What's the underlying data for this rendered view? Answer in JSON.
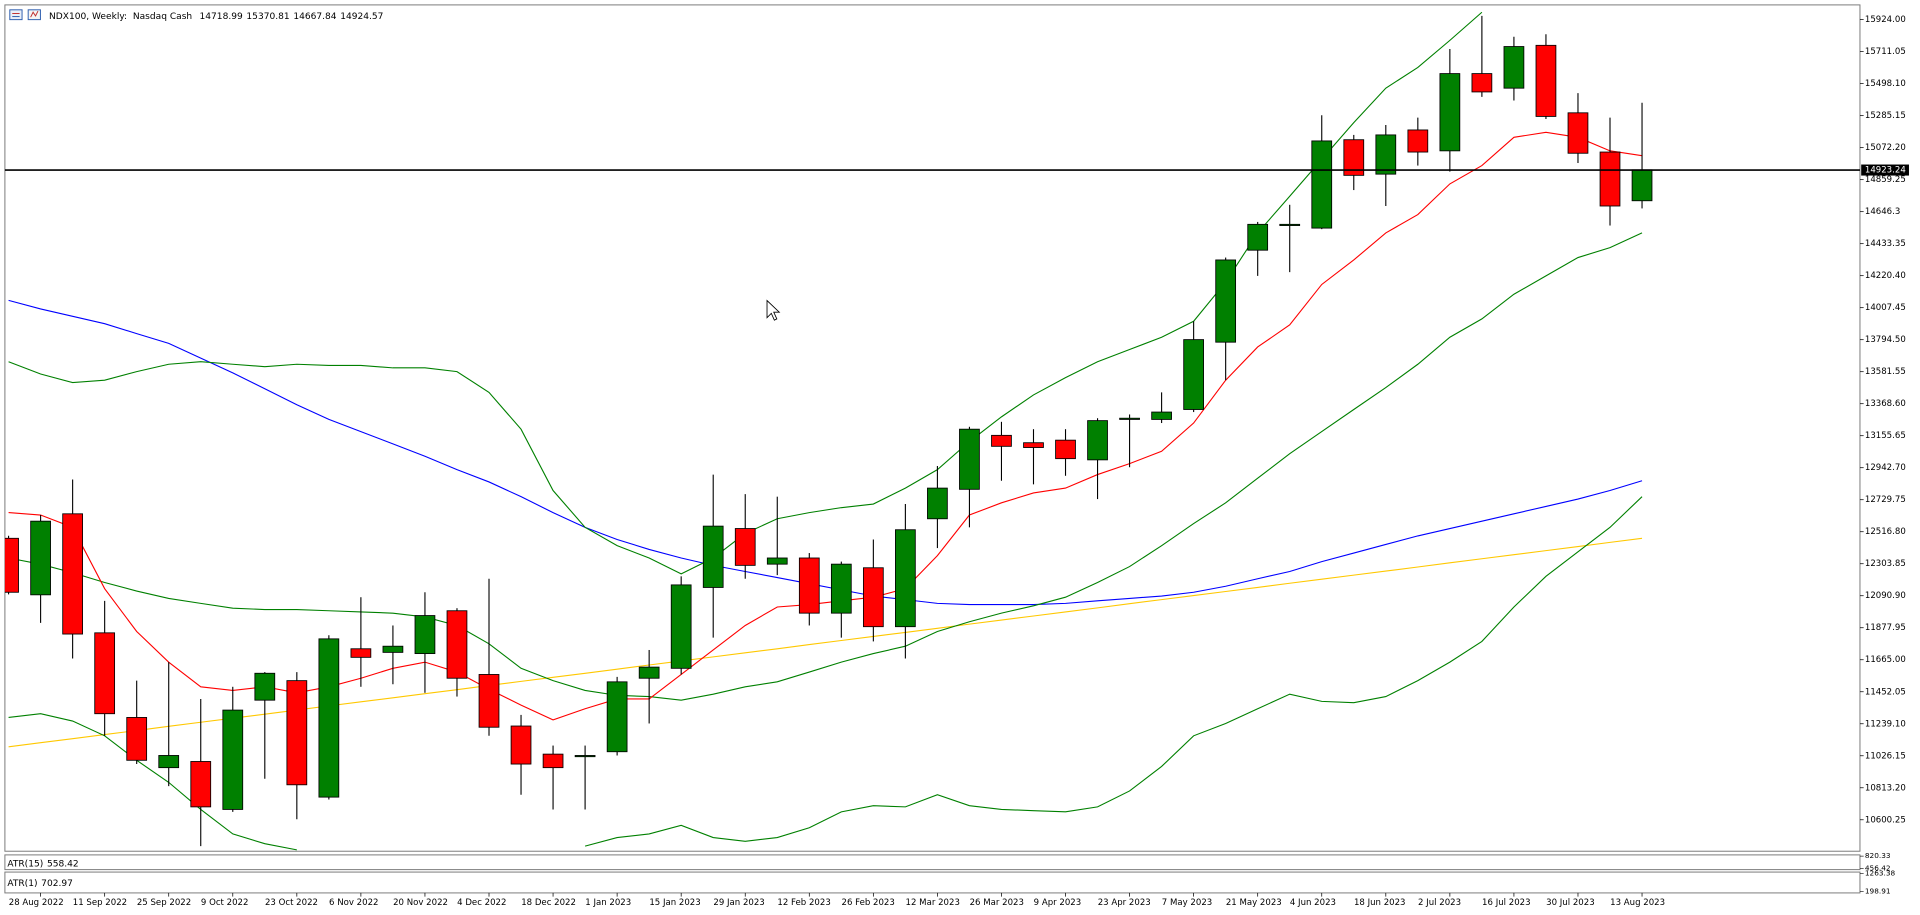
{
  "chart_data": {
    "type": "candlestick",
    "title": "NDX100, Weekly:  Nasdaq Cash",
    "categories": [
      null,
      "28 Aug 2022",
      null,
      "11 Sep 2022",
      null,
      "25 Sep 2022",
      null,
      "9 Oct 2022",
      null,
      "23 Oct 2022",
      null,
      "6 Nov 2022",
      null,
      "20 Nov 2022",
      null,
      "4 Dec 2022",
      null,
      "18 Dec 2022",
      null,
      "1 Jan 2023",
      null,
      "15 Jan 2023",
      null,
      "29 Jan 2023",
      null,
      "12 Feb 2023",
      null,
      "26 Feb 2023",
      null,
      "12 Mar 2023",
      null,
      "26 Mar 2023",
      null,
      "9 Apr 2023",
      null,
      "23 Apr 2023",
      null,
      "7 May 2023",
      null,
      "21 May 2023",
      null,
      "4 Jun 2023",
      null,
      "18 Jun 2023",
      null,
      "2 Jul 2023",
      null,
      "16 Jul 2023",
      null,
      "30 Jul 2023",
      null,
      "13 Aug 2023"
    ],
    "open": [
      12473,
      12097,
      12636,
      11844,
      11281,
      10947,
      10988,
      10669,
      11396,
      11526,
      10751,
      11738,
      11714,
      11706,
      11991,
      11567,
      11224,
      11037,
      11020,
      11053,
      11542,
      11608,
      12146,
      12538,
      12301,
      12342,
      11975,
      12277,
      11885,
      12603,
      12799,
      13158,
      13109,
      13126,
      12995,
      13264,
      13264,
      13330,
      13778,
      14390,
      14554,
      14537,
      15125,
      14896,
      15190,
      15051,
      15565,
      15468,
      15753,
      15304,
      15043,
      14718.99
    ],
    "high": [
      12490,
      12628,
      12864,
      12057,
      11526,
      11649,
      11404,
      11485,
      11583,
      11583,
      11828,
      12081,
      11893,
      12114,
      12008,
      12204,
      11298,
      11094,
      11094,
      11551,
      11730,
      12220,
      12897,
      12767,
      12750,
      12375,
      12318,
      12465,
      12701,
      12954,
      13215,
      13248,
      13199,
      13199,
      13272,
      13297,
      13444,
      13917,
      14341,
      14578,
      14692,
      15288,
      15157,
      15223,
      15272,
      15729,
      15949,
      15810,
      15827,
      15435,
      15272,
      15370.81
    ],
    "low": [
      12100,
      11910,
      11673,
      11159,
      10971,
      10824,
      10425,
      10653,
      10873,
      10604,
      10735,
      11485,
      11502,
      11445,
      11420,
      11159,
      10767,
      10669,
      10669,
      11028,
      11241,
      11567,
      11812,
      12204,
      12228,
      11893,
      11812,
      11787,
      11673,
      12408,
      12546,
      12856,
      12832,
      12889,
      12734,
      12946,
      13240,
      13313,
      13525,
      14219,
      14244,
      14530,
      14790,
      14684,
      14953,
      14913,
      15410,
      15386,
      15263,
      14970,
      14554,
      14667.84
    ],
    "close": [
      12114,
      12587,
      11836,
      11306,
      10996,
      11028,
      10686,
      11330,
      11575,
      10833,
      11804,
      11681,
      11755,
      11959,
      11542,
      11216,
      10971,
      10947,
      11028,
      11518,
      11616,
      12163,
      12554,
      12293,
      12342,
      11975,
      12301,
      11885,
      12530,
      12807,
      13199,
      13085,
      13077,
      13003,
      13256,
      13272,
      13313,
      13795,
      14325,
      14562,
      14562,
      15117,
      14888,
      15157,
      15043,
      15565,
      15443,
      15745,
      15280,
      15035,
      14684,
      14924.57
    ],
    "up_color": "#008000",
    "down_color": "#ff0000",
    "overlays": [
      {
        "color": "#0000ff",
        "values": [
          14056,
          13999,
          13950,
          13901,
          13835,
          13770,
          13672,
          13574,
          13468,
          13362,
          13264,
          13183,
          13101,
          13019,
          12930,
          12848,
          12750,
          12644,
          12546,
          12465,
          12399,
          12342,
          12293,
          12252,
          12212,
          12171,
          12130,
          12089,
          12065,
          12040,
          12032,
          12032,
          12032,
          12040,
          12057,
          12073,
          12089,
          12114,
          12154,
          12204,
          12252,
          12318,
          12375,
          12432,
          12489,
          12538,
          12587,
          12636,
          12685,
          12734,
          12791,
          12856
        ]
      },
      {
        "color": "#ffc800",
        "values": [
          11086,
          11113,
          11140,
          11167,
          11194,
          11222,
          11249,
          11276,
          11303,
          11330,
          11358,
          11385,
          11412,
          11439,
          11466,
          11494,
          11521,
          11548,
          11575,
          11602,
          11630,
          11657,
          11684,
          11711,
          11738,
          11766,
          11793,
          11820,
          11847,
          11874,
          11902,
          11929,
          11956,
          11983,
          12010,
          12038,
          12065,
          12092,
          12119,
          12146,
          12174,
          12201,
          12228,
          12255,
          12282,
          12310,
          12337,
          12364,
          12391,
          12418,
          12446,
          12473
        ]
      },
      {
        "color": "#008000",
        "values": [
          13648,
          13566,
          13509,
          13525,
          13582,
          13631,
          13648,
          13631,
          13615,
          13631,
          13623,
          13623,
          13607,
          13607,
          13582,
          13444,
          13199,
          12791,
          12546,
          12424,
          12342,
          12236,
          12342,
          12505,
          12603,
          12644,
          12677,
          12701,
          12807,
          12930,
          13117,
          13281,
          13427,
          13542,
          13648,
          13729,
          13811,
          13917,
          14178,
          14505,
          14749,
          14994,
          15239,
          15468,
          15606,
          15786,
          15973,
          null,
          null,
          null,
          null,
          null
        ]
      },
      {
        "color": "#008000",
        "values": [
          12342,
          12301,
          12244,
          12179,
          12122,
          12073,
          12040,
          12008,
          11999,
          11999,
          11991,
          11983,
          11975,
          11950,
          11893,
          11771,
          11608,
          11526,
          11461,
          11428,
          11420,
          11396,
          11436,
          11485,
          11518,
          11583,
          11649,
          11706,
          11755,
          11853,
          11918,
          11975,
          12024,
          12081,
          12179,
          12285,
          12424,
          12571,
          12709,
          12873,
          13036,
          13183,
          13330,
          13476,
          13631,
          13811,
          13933,
          14097,
          14219,
          14341,
          14407,
          14505
        ]
      },
      {
        "color": "#008000",
        "values": [
          11281,
          11306,
          11257,
          11159,
          10996,
          10849,
          10669,
          10506,
          10441,
          10400,
          null,
          null,
          null,
          null,
          null,
          null,
          null,
          null,
          10425,
          10482,
          10506,
          10563,
          10482,
          10457,
          10482,
          10547,
          10653,
          10694,
          10686,
          10767,
          10694,
          10669,
          10661,
          10653,
          10686,
          10792,
          10955,
          11159,
          11241,
          11339,
          11436,
          11388,
          11379,
          11420,
          11526,
          11649,
          11787,
          12016,
          12220,
          12383,
          12546,
          12750
        ]
      },
      {
        "color": "#ff0000",
        "values": [
          12644,
          12628,
          12546,
          12138,
          11853,
          11649,
          11485,
          11461,
          11485,
          11445,
          11485,
          11542,
          11608,
          11649,
          11583,
          11469,
          11363,
          11265,
          11339,
          11404,
          11404,
          11567,
          11730,
          11893,
          12016,
          12032,
          12057,
          12081,
          12138,
          12358,
          12628,
          12709,
          12775,
          12807,
          12897,
          12970,
          13052,
          13240,
          13525,
          13746,
          13893,
          14162,
          14325,
          14505,
          14627,
          14831,
          14953,
          15141,
          15174,
          15141,
          15051,
          15019
        ]
      }
    ],
    "price_line": {
      "value": 14923.24
    },
    "ylim": [
      10391,
      16022
    ],
    "yticks": [
      {
        "value": 15924,
        "label": "15924.00"
      },
      {
        "value": 15711.05,
        "label": "15711.05"
      },
      {
        "value": 15498.1,
        "label": "15498.10"
      },
      {
        "value": 15285.15,
        "label": "15285.15"
      },
      {
        "value": 15072.2,
        "label": "15072.20"
      },
      14859.25,
      14646.3,
      14433.35,
      {
        "value": 14220.4,
        "label": "14220.40"
      },
      14007.45,
      {
        "value": 13794.5,
        "label": "13794.50"
      },
      13581.55,
      {
        "value": 13368.6,
        "label": "13368.60"
      },
      13155.65,
      {
        "value": 12942.7,
        "label": "12942.70"
      },
      12729.75,
      {
        "value": 12516.8,
        "label": "12516.80"
      },
      12303.85,
      {
        "value": 12090.9,
        "label": "12090.90"
      },
      11877.95,
      {
        "value": 11665,
        "label": "11665.00"
      },
      11452.05,
      {
        "value": 11239.1,
        "label": "11239.10"
      },
      11026.15,
      {
        "value": 10813.2,
        "label": "10813.20"
      },
      10600.25
    ],
    "grid": false,
    "indicators": [
      {
        "label": "ATR(15)",
        "value": 558.42,
        "ylim": [
          456.42,
          820.33
        ],
        "yticks": [
          820.33,
          456.42
        ]
      },
      {
        "label": "ATR(1)",
        "value": 702.97,
        "ylim": [
          198.91,
          1263.38
        ],
        "yticks": [
          1263.38,
          198.91
        ]
      }
    ]
  }
}
